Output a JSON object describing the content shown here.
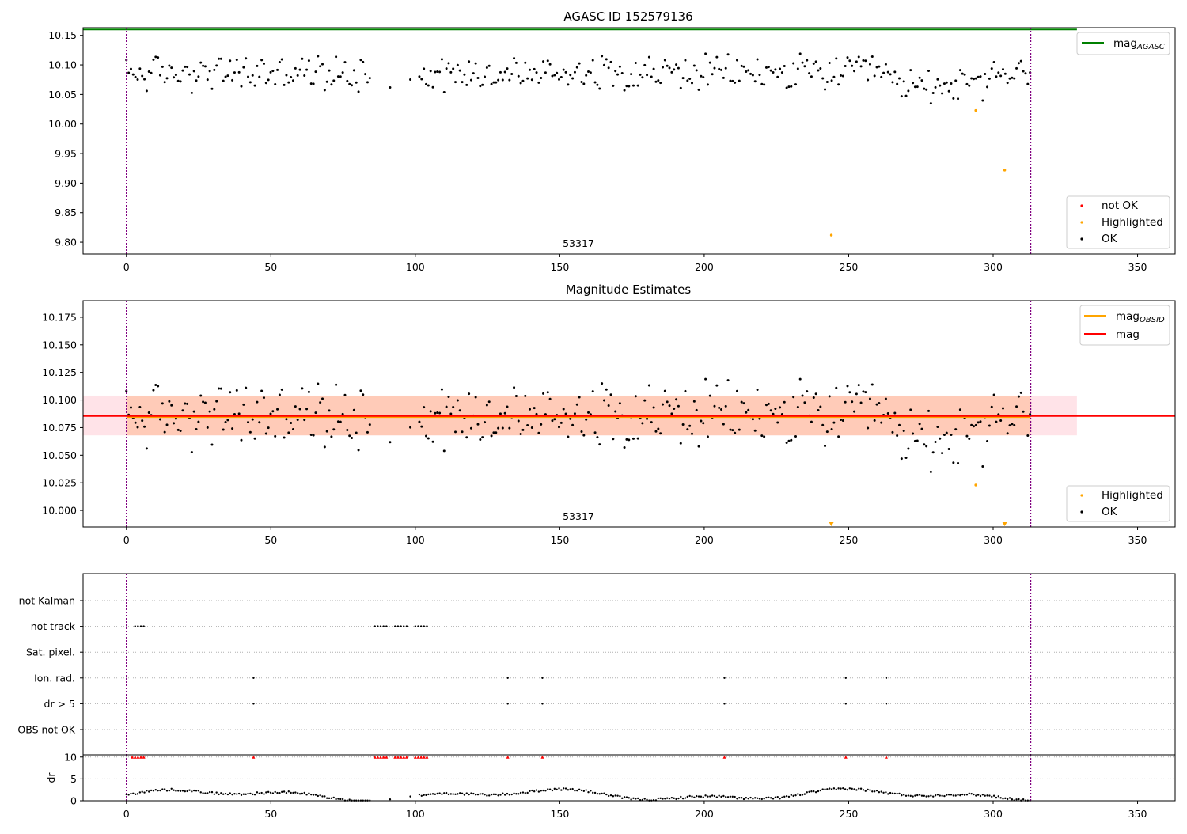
{
  "chart_data": [
    {
      "type": "scatter",
      "title": "AGASC ID 152579136",
      "annotation": "53317",
      "xlim": [
        -15,
        363
      ],
      "ylim": [
        9.78,
        10.163
      ],
      "x_ticks": [
        "0",
        "50",
        "100",
        "150",
        "200",
        "250",
        "300",
        "350"
      ],
      "y_ticks": [
        "9.80",
        "9.85",
        "9.90",
        "9.95",
        "10.00",
        "10.05",
        "10.10",
        "10.15"
      ],
      "reference_line": {
        "name": "mag",
        "subscript": "AGASC",
        "value": 10.16,
        "x_range": [
          -15,
          329
        ],
        "color": "#008000"
      },
      "vlines": [
        0,
        313
      ],
      "legend": [
        "not OK",
        "Highlighted",
        "OK"
      ],
      "colors": {
        "ok": "#000000",
        "highlighted": "#ffa500",
        "not_ok": "#ff0000",
        "vline": "#800080"
      },
      "series": [
        {
          "name": "OK",
          "style": "dots"
        },
        {
          "name": "Highlighted",
          "points": [
            [
              244,
              9.812
            ],
            [
              294,
              10.023
            ],
            [
              304,
              9.922
            ]
          ]
        },
        {
          "name": "not OK",
          "points": []
        }
      ]
    },
    {
      "type": "scatter",
      "title": "Magnitude Estimates",
      "annotation": "53317",
      "xlim": [
        -15,
        363
      ],
      "ylim": [
        9.985,
        10.19
      ],
      "x_ticks": [
        "0",
        "50",
        "100",
        "150",
        "200",
        "250",
        "300",
        "350"
      ],
      "y_ticks": [
        "10.000",
        "10.025",
        "10.050",
        "10.075",
        "10.100",
        "10.125",
        "10.150",
        "10.175"
      ],
      "bands": [
        {
          "from": 10.068,
          "to": 10.104,
          "x_range": [
            -15,
            329
          ],
          "color": "#ffc0cb"
        },
        {
          "from": 10.068,
          "to": 10.104,
          "x_range": [
            0,
            313
          ],
          "color": "#ffb890"
        }
      ],
      "lines": [
        {
          "name": "mag",
          "subscript": "OBSID",
          "value": 10.0845,
          "x_range": [
            0,
            313
          ],
          "color": "#ffa500"
        },
        {
          "name": "mag",
          "value": 10.0855,
          "x_range": [
            -15,
            363
          ],
          "color": "#ff0000"
        }
      ],
      "vlines": [
        0,
        313
      ],
      "legend": [
        "Highlighted",
        "OK"
      ],
      "series": [
        {
          "name": "OK",
          "style": "dots"
        },
        {
          "name": "Highlighted",
          "points": [
            [
              294,
              10.023
            ]
          ],
          "offscale_markers_x": [
            244,
            304
          ]
        }
      ]
    },
    {
      "type": "scatter",
      "xlim": [
        -15,
        363
      ],
      "x_ticks": [
        "0",
        "50",
        "100",
        "150",
        "200",
        "250",
        "300",
        "350"
      ],
      "vlines": [
        0,
        313
      ],
      "flags": [
        "not Kalman",
        "not track",
        "Sat. pixel.",
        "Ion. rad.",
        "dr > 5",
        "OBS not OK"
      ],
      "flag_points": {
        "not Kalman": [],
        "not track": [
          3,
          4,
          5,
          6,
          86,
          87,
          88,
          89,
          90,
          93,
          94,
          95,
          96,
          97,
          100,
          101,
          102,
          103,
          104
        ],
        "Sat. pixel.": [],
        "Ion. rad.": [
          44,
          132,
          144,
          207,
          249,
          263
        ],
        "dr > 5": [
          44,
          132,
          144,
          207,
          249,
          263
        ],
        "OBS not OK": []
      },
      "dr": {
        "ylabel": "dr",
        "y_ticks": [
          "0",
          "5",
          "10"
        ],
        "ylim": [
          0,
          10.5
        ],
        "clipped_x": [
          2,
          3,
          4,
          5,
          6,
          44,
          86,
          87,
          88,
          89,
          90,
          93,
          94,
          95,
          96,
          97,
          100,
          101,
          102,
          103,
          104,
          132,
          144,
          207,
          249,
          263
        ],
        "clip_color": "#ff0000"
      }
    }
  ]
}
